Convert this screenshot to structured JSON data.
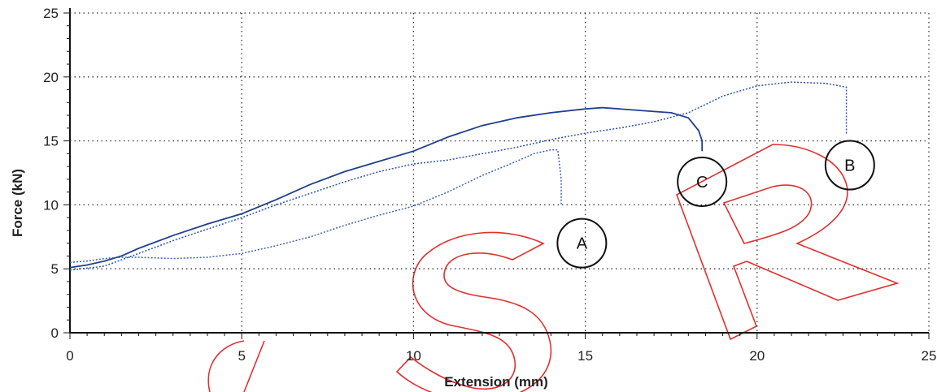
{
  "chart_data": {
    "type": "line",
    "title": "",
    "xlabel": "Extension (mm)",
    "ylabel": "Force (kN)",
    "xlim": [
      0,
      25
    ],
    "ylim": [
      0,
      25
    ],
    "x_ticks": [
      0,
      5,
      10,
      15,
      20,
      25
    ],
    "y_ticks": [
      0,
      5,
      10,
      15,
      20,
      25
    ],
    "x_tick_labels": [
      "0",
      "5",
      "10",
      "15",
      "20",
      "25"
    ],
    "y_tick_labels": [
      "0",
      "5",
      "10",
      "15",
      "20",
      "25"
    ],
    "grid": true,
    "series": [
      {
        "color": "#1f3f8a",
        "style": "solid",
        "x": [
          0,
          0.5,
          1,
          1.5,
          2,
          3,
          4,
          5,
          6,
          7,
          8,
          9,
          10,
          11,
          12,
          13,
          14,
          15,
          15.5,
          16,
          17,
          17.5,
          18,
          18.3,
          18.4,
          18.4
        ],
        "y": [
          5.1,
          5.3,
          5.6,
          6.0,
          6.6,
          7.6,
          8.5,
          9.3,
          10.4,
          11.6,
          12.6,
          13.4,
          14.2,
          15.3,
          16.2,
          16.8,
          17.2,
          17.5,
          17.6,
          17.5,
          17.3,
          17.2,
          16.8,
          15.8,
          15.0,
          14.2
        ]
      },
      {
        "color": "#2b52a8",
        "style": "dotted",
        "x": [
          0,
          1,
          2,
          3,
          4,
          5,
          6,
          7,
          8,
          9,
          10,
          11,
          12,
          13,
          14,
          15,
          16,
          17,
          18,
          19,
          20,
          21,
          22,
          22.6,
          22.6
        ],
        "y": [
          4.9,
          5.2,
          6.2,
          7.2,
          8.1,
          9.0,
          10.0,
          10.9,
          11.8,
          12.6,
          13.2,
          13.5,
          14.0,
          14.5,
          15.1,
          15.6,
          16.0,
          16.5,
          17.2,
          18.5,
          19.3,
          19.6,
          19.5,
          19.2,
          15.5
        ]
      },
      {
        "color": "#3a60b8",
        "style": "dotted",
        "x": [
          0,
          0.5,
          1,
          1.5,
          2,
          3,
          4,
          5,
          6,
          7,
          8,
          9,
          10,
          11,
          12,
          13,
          13.5,
          14,
          14.2,
          14.3,
          14.3
        ],
        "y": [
          5.5,
          5.6,
          5.8,
          5.9,
          5.9,
          5.8,
          5.9,
          6.2,
          6.8,
          7.5,
          8.4,
          9.2,
          9.9,
          11.0,
          12.3,
          13.4,
          14.0,
          14.3,
          14.3,
          12.0,
          10.0
        ]
      }
    ],
    "annotations": [
      {
        "label": "A",
        "x": 14.9,
        "y": 7.0
      },
      {
        "label": "B",
        "x": 22.7,
        "y": 13.1
      },
      {
        "label": "C",
        "x": 18.4,
        "y": 11.8
      }
    ]
  },
  "watermark": {
    "text": "SR",
    "color": "#e03030"
  }
}
